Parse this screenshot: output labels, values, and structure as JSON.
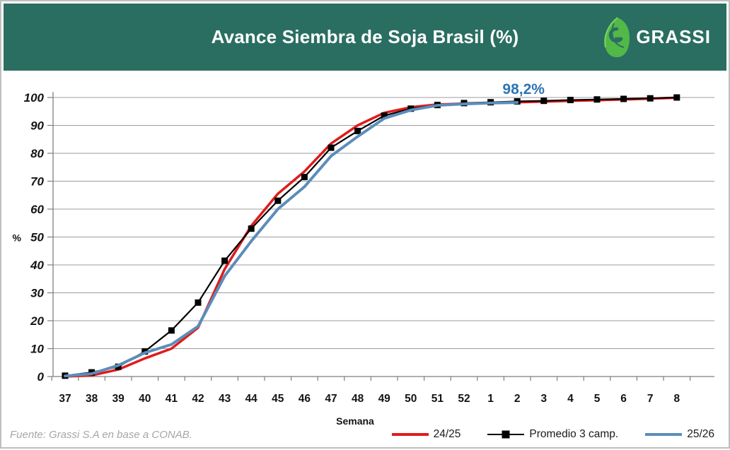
{
  "header": {
    "title": "Avance Siembra de Soja Brasil (%)",
    "logo_text": "GRASSI"
  },
  "footer": {
    "source": "Fuente: Grassi S.A en base a CONAB."
  },
  "colors": {
    "header_bg": "#2a6e62",
    "logo_green": "#52b848",
    "annotation_blue": "#2e74b5",
    "source_gray": "#a6a6a6",
    "gridline_gray": "#9c9c9c"
  },
  "chart_data": {
    "type": "line",
    "title": "Avance Siembra de Soja Brasil (%)",
    "xlabel": "Semana",
    "ylabel": "%",
    "ylim": [
      0,
      100
    ],
    "y_ticks": [
      0,
      10,
      20,
      30,
      40,
      50,
      60,
      70,
      80,
      90,
      100
    ],
    "grid": true,
    "legend_position": "bottom-right",
    "categories": [
      "37",
      "38",
      "39",
      "40",
      "41",
      "42",
      "43",
      "44",
      "45",
      "46",
      "47",
      "48",
      "49",
      "50",
      "51",
      "52",
      "1",
      "2",
      "3",
      "4",
      "5",
      "6",
      "7",
      "8"
    ],
    "series": [
      {
        "name": "24/25",
        "color": "#e01b1b",
        "width": 3.5,
        "marker": "none",
        "values": [
          0,
          0.4,
          2.5,
          6.5,
          10,
          17.5,
          38.5,
          54,
          65.5,
          73.5,
          83.5,
          90,
          94.5,
          96.5,
          97.5,
          97.8,
          98,
          98.3,
          98.5,
          98.8,
          99,
          99.3,
          99.6,
          99.9
        ]
      },
      {
        "name": "Promedio 3 camp.",
        "color": "#000000",
        "width": 2.2,
        "marker": "square",
        "values": [
          0.3,
          1.5,
          3.5,
          9,
          16.5,
          26.5,
          41.5,
          53,
          63,
          71.5,
          82,
          88,
          93.5,
          96,
          97.3,
          98,
          98.3,
          98.6,
          98.8,
          99.1,
          99.3,
          99.5,
          99.7,
          100
        ]
      },
      {
        "name": "25/26",
        "color": "#5b8db9",
        "width": 4,
        "marker": "none",
        "values": [
          0.2,
          1,
          4,
          8.5,
          11.5,
          18,
          36,
          48.5,
          60,
          68,
          79,
          86,
          92.5,
          95.5,
          97.2,
          97.7,
          98,
          98.2,
          null,
          null,
          null,
          null,
          null,
          null
        ]
      }
    ],
    "annotation": {
      "text": "98,2%",
      "x_category": "2",
      "y": 98.2
    }
  }
}
